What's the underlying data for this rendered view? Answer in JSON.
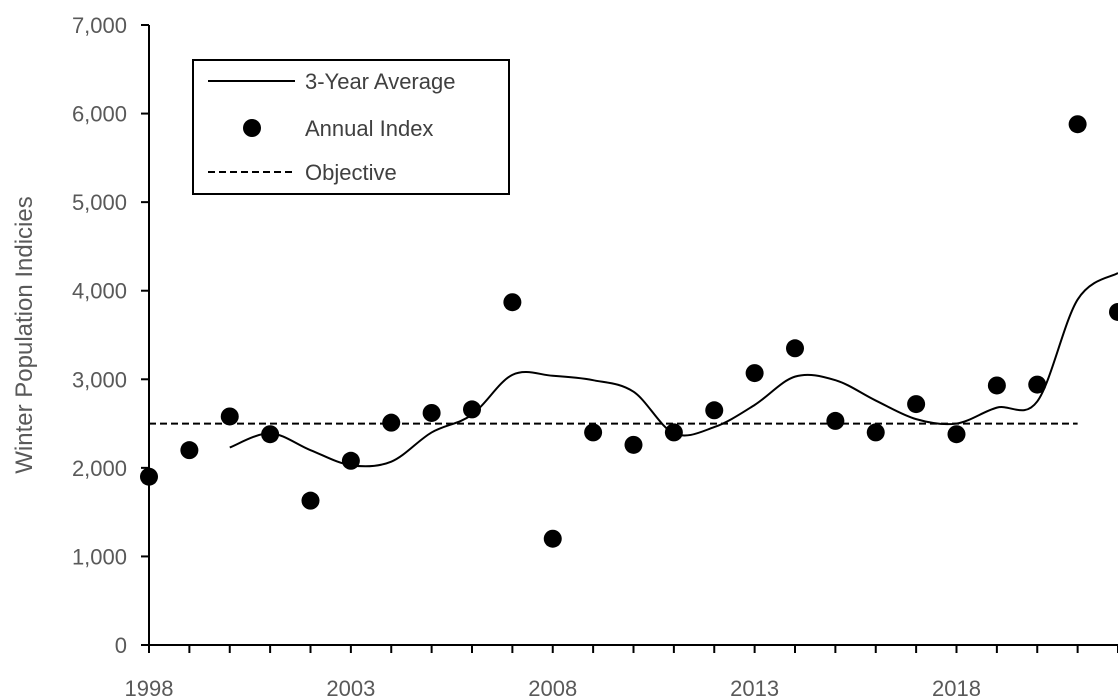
{
  "chart_data": {
    "type": "scatter",
    "ylabel": "Winter Population Indicies",
    "xlabel": "",
    "xlim": [
      1998,
      2022
    ],
    "ylim": [
      0,
      7000
    ],
    "x_ticks": [
      1998,
      2003,
      2008,
      2013,
      2018
    ],
    "x_tick_labels": [
      "1998",
      "2003",
      "2008",
      "2013",
      "2018"
    ],
    "y_ticks": [
      0,
      1000,
      2000,
      3000,
      4000,
      5000,
      6000,
      7000
    ],
    "y_tick_labels": [
      "0",
      "1,000",
      "2,000",
      "3,000",
      "4,000",
      "5,000",
      "6,000",
      "7,000"
    ],
    "grid": false,
    "legend": {
      "placement": "top-left",
      "entries": [
        "3-Year Average",
        "Annual Index",
        "Objective"
      ]
    },
    "series": [
      {
        "name": "Annual Index",
        "style": "marker",
        "color": "#000000",
        "x": [
          1998,
          1999,
          2000,
          2001,
          2002,
          2003,
          2004,
          2005,
          2006,
          2007,
          2008,
          2009,
          2010,
          2011,
          2012,
          2013,
          2014,
          2015,
          2016,
          2017,
          2018,
          2019,
          2020,
          2021,
          2022
        ],
        "y": [
          1900,
          2200,
          2580,
          2380,
          1630,
          2080,
          2510,
          2620,
          2660,
          3870,
          1200,
          2400,
          2260,
          2400,
          2650,
          3070,
          3350,
          2530,
          2400,
          2720,
          2380,
          2930,
          2940,
          5880,
          3760
        ]
      },
      {
        "name": "3-Year Average",
        "style": "solid-line",
        "color": "#000000",
        "x": [
          2000,
          2001,
          2002,
          2003,
          2004,
          2005,
          2006,
          2007,
          2008,
          2009,
          2010,
          2011,
          2012,
          2013,
          2014,
          2015,
          2016,
          2017,
          2018,
          2019,
          2020,
          2021,
          2022
        ],
        "y": [
          2230,
          2390,
          2200,
          2030,
          2070,
          2400,
          2600,
          3050,
          3040,
          2990,
          2860,
          2390,
          2460,
          2710,
          3030,
          2990,
          2760,
          2550,
          2500,
          2680,
          2750,
          3900,
          4200
        ]
      },
      {
        "name": "Objective",
        "style": "dashed-line",
        "color": "#000000",
        "x": [
          1998,
          2021
        ],
        "y": [
          2500,
          2500
        ]
      }
    ]
  }
}
